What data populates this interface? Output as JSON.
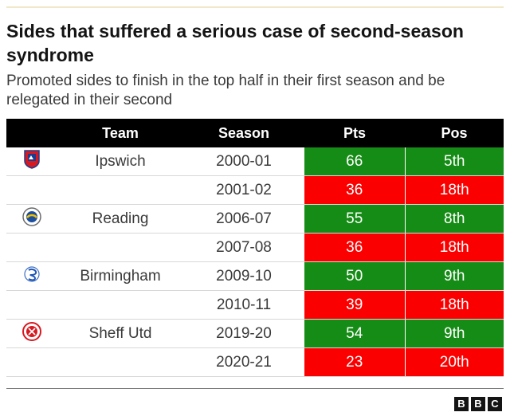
{
  "title": "Sides that suffered a serious case of second-season syndrome",
  "subtitle": "Promoted sides to finish in the top half in their first season and be relegated in their second",
  "headers": {
    "crest": "",
    "team": "Team",
    "season": "Season",
    "pts": "Pts",
    "pos": "Pos"
  },
  "colors": {
    "top_half": "#158c15",
    "relegated": "#fa0000",
    "header": "#000000"
  },
  "chart_data": {
    "type": "table",
    "columns": [
      "Team",
      "Season",
      "Pts",
      "Pos"
    ],
    "rows": [
      {
        "team": "Ipswich",
        "crest": "ipswich-crest-icon",
        "season": "2000-01",
        "pts": "66",
        "pos": "5th",
        "outcome": "top-half"
      },
      {
        "team": "",
        "crest": "",
        "season": "2001-02",
        "pts": "36",
        "pos": "18th",
        "outcome": "relegated"
      },
      {
        "team": "Reading",
        "crest": "reading-crest-icon",
        "season": "2006-07",
        "pts": "55",
        "pos": "8th",
        "outcome": "top-half"
      },
      {
        "team": "",
        "crest": "",
        "season": "2007-08",
        "pts": "36",
        "pos": "18th",
        "outcome": "relegated"
      },
      {
        "team": "Birmingham",
        "crest": "birmingham-crest-icon",
        "season": "2009-10",
        "pts": "50",
        "pos": "9th",
        "outcome": "top-half"
      },
      {
        "team": "",
        "crest": "",
        "season": "2010-11",
        "pts": "39",
        "pos": "18th",
        "outcome": "relegated"
      },
      {
        "team": "Sheff Utd",
        "crest": "sheff-utd-crest-icon",
        "season": "2019-20",
        "pts": "54",
        "pos": "9th",
        "outcome": "top-half"
      },
      {
        "team": "",
        "crest": "",
        "season": "2020-21",
        "pts": "23",
        "pos": "20th",
        "outcome": "relegated"
      }
    ]
  },
  "logo": {
    "letters": [
      "B",
      "B",
      "C"
    ],
    "icon": "bbc-logo-icon"
  }
}
